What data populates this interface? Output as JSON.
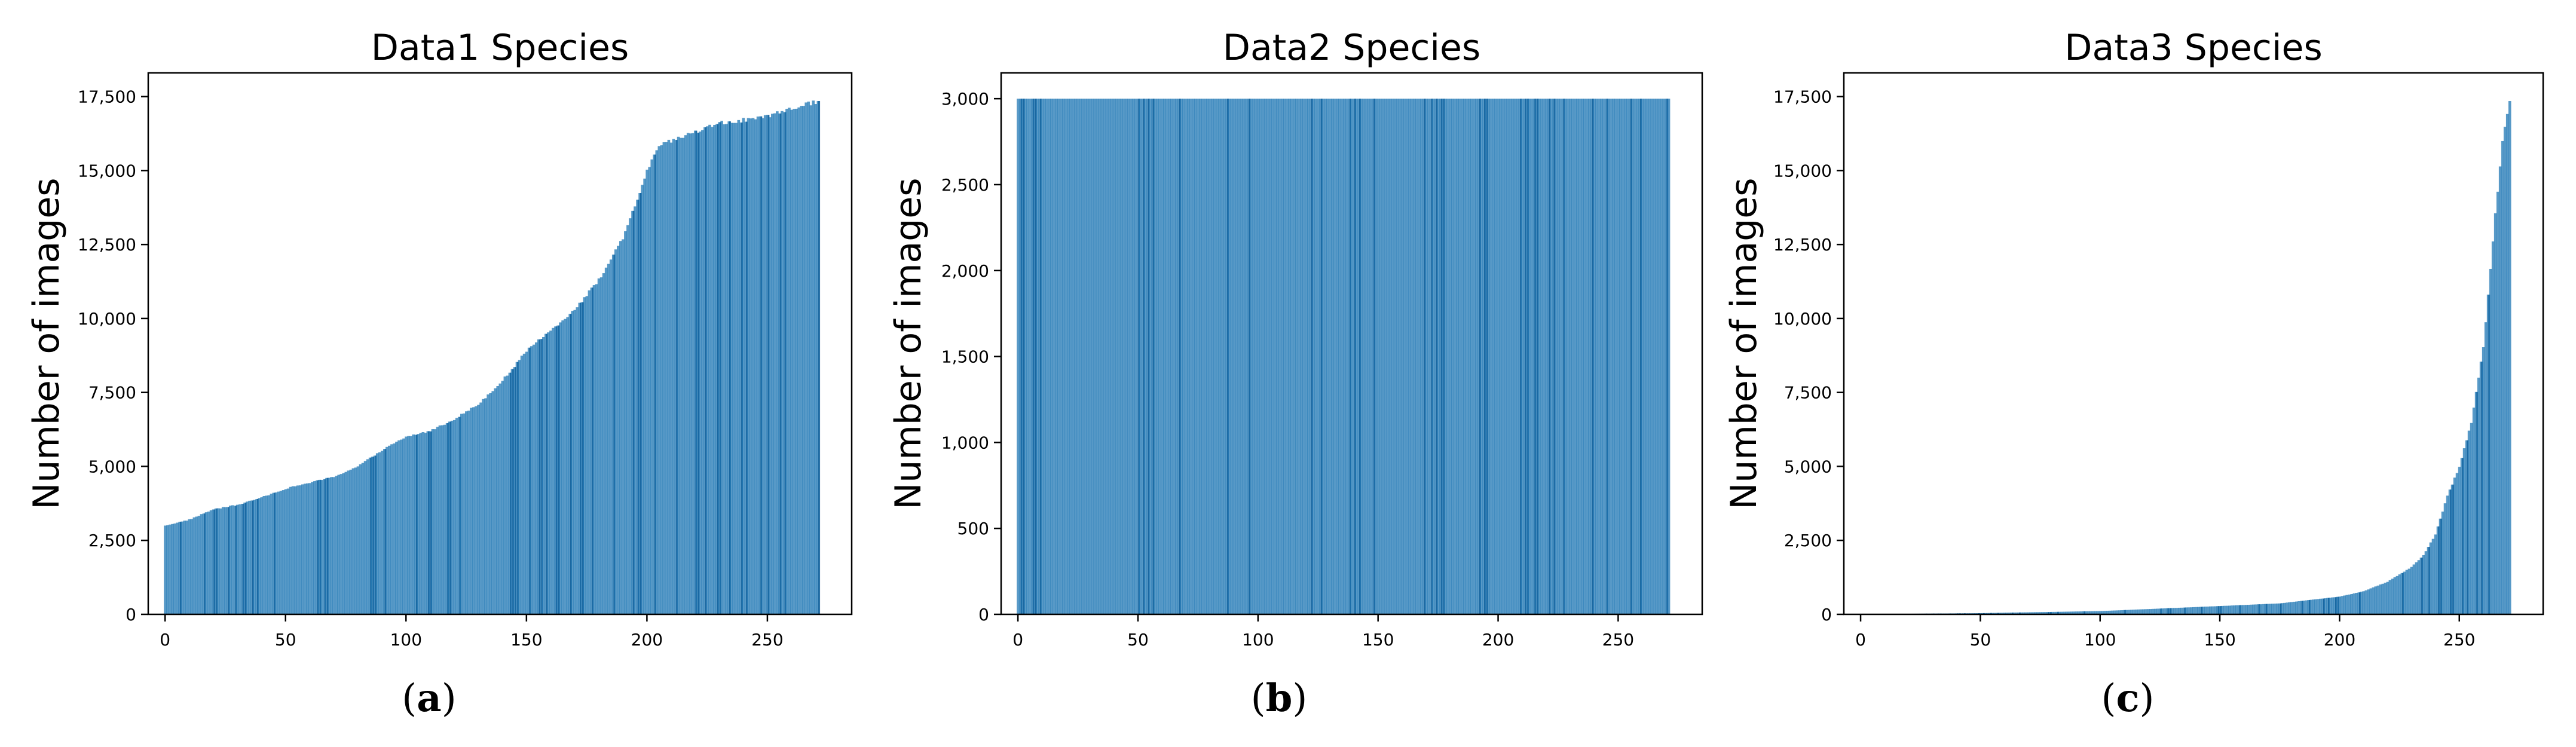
{
  "chart_data": [
    {
      "type": "bar",
      "caption_letter": "a",
      "title": "Data1 Species",
      "xlabel": "",
      "ylabel": "Number of images",
      "xlim": [
        -7,
        285
      ],
      "ylim": [
        0,
        18300
      ],
      "xticks": [
        0,
        50,
        100,
        150,
        200,
        250
      ],
      "xtick_labels": [
        "0",
        "50",
        "100",
        "150",
        "200",
        "250"
      ],
      "yticks": [
        0,
        2500,
        5000,
        7500,
        10000,
        12500,
        15000,
        17500
      ],
      "ytick_labels": [
        "0",
        "2,500",
        "5,000",
        "7,500",
        "10,000",
        "12,500",
        "15,000",
        "17,500"
      ],
      "bar_count": 272,
      "bar_color": "#1f77b4",
      "bar_alpha": 0.75,
      "grid": false,
      "profile_points": [
        [
          0,
          3000
        ],
        [
          10,
          3200
        ],
        [
          20,
          3550
        ],
        [
          30,
          3700
        ],
        [
          40,
          3950
        ],
        [
          50,
          4250
        ],
        [
          60,
          4450
        ],
        [
          70,
          4650
        ],
        [
          80,
          5000
        ],
        [
          90,
          5550
        ],
        [
          100,
          6000
        ],
        [
          110,
          6200
        ],
        [
          120,
          6600
        ],
        [
          130,
          7100
        ],
        [
          140,
          7900
        ],
        [
          150,
          8900
        ],
        [
          160,
          9600
        ],
        [
          170,
          10300
        ],
        [
          180,
          11300
        ],
        [
          190,
          12700
        ],
        [
          195,
          13800
        ],
        [
          200,
          15000
        ],
        [
          205,
          15800
        ],
        [
          210,
          16000
        ],
        [
          220,
          16300
        ],
        [
          230,
          16600
        ],
        [
          240,
          16700
        ],
        [
          250,
          16800
        ],
        [
          260,
          17100
        ],
        [
          271,
          17350
        ]
      ]
    },
    {
      "type": "bar",
      "caption_letter": "b",
      "title": "Data2 Species",
      "xlabel": "",
      "ylabel": "Number of images",
      "xlim": [
        -7,
        285
      ],
      "ylim": [
        0,
        3150
      ],
      "xticks": [
        0,
        50,
        100,
        150,
        200,
        250
      ],
      "xtick_labels": [
        "0",
        "50",
        "100",
        "150",
        "200",
        "250"
      ],
      "yticks": [
        0,
        500,
        1000,
        1500,
        2000,
        2500,
        3000
      ],
      "ytick_labels": [
        "0",
        "500",
        "1,000",
        "1,500",
        "2,000",
        "2,500",
        "3,000"
      ],
      "bar_count": 272,
      "bar_color": "#1f77b4",
      "bar_alpha": 0.75,
      "grid": false,
      "profile_points": [
        [
          0,
          3000
        ],
        [
          271,
          3000
        ]
      ]
    },
    {
      "type": "bar",
      "caption_letter": "c",
      "title": "Data3 Species",
      "xlabel": "",
      "ylabel": "Number of images",
      "xlim": [
        -7,
        285
      ],
      "ylim": [
        0,
        18300
      ],
      "xticks": [
        0,
        50,
        100,
        150,
        200,
        250
      ],
      "xtick_labels": [
        "0",
        "50",
        "100",
        "150",
        "200",
        "250"
      ],
      "yticks": [
        0,
        2500,
        5000,
        7500,
        10000,
        12500,
        15000,
        17500
      ],
      "ytick_labels": [
        "0",
        "2,500",
        "5,000",
        "7,500",
        "10,000",
        "12,500",
        "15,000",
        "17,500"
      ],
      "bar_count": 272,
      "bar_color": "#1f77b4",
      "bar_alpha": 0.75,
      "grid": false,
      "profile_points": [
        [
          0,
          5
        ],
        [
          50,
          40
        ],
        [
          100,
          110
        ],
        [
          150,
          280
        ],
        [
          175,
          370
        ],
        [
          200,
          600
        ],
        [
          210,
          780
        ],
        [
          220,
          1100
        ],
        [
          230,
          1600
        ],
        [
          235,
          2000
        ],
        [
          240,
          2700
        ],
        [
          245,
          4000
        ],
        [
          250,
          5000
        ],
        [
          255,
          6500
        ],
        [
          260,
          9000
        ],
        [
          265,
          13500
        ],
        [
          268,
          16000
        ],
        [
          271,
          17350
        ]
      ]
    }
  ]
}
